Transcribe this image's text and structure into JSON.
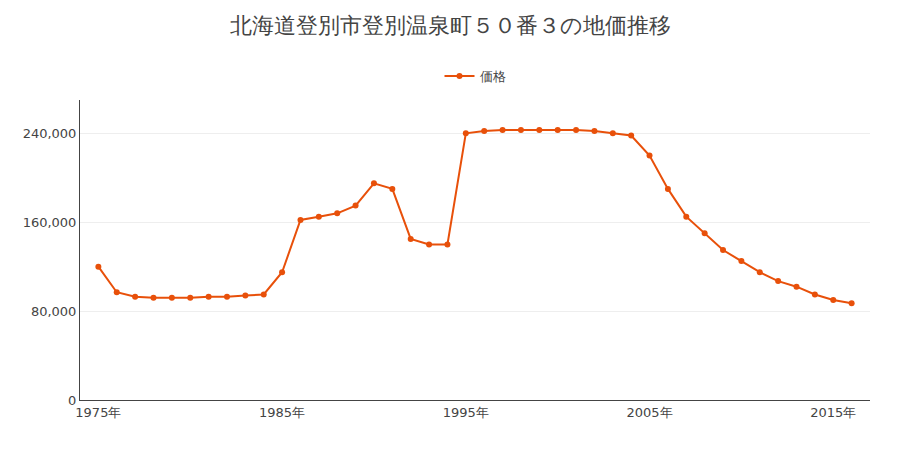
{
  "chart_data": {
    "type": "line",
    "title": "北海道登別市登別温泉町５０番３の地価推移",
    "x": [
      1975,
      1976,
      1977,
      1978,
      1979,
      1980,
      1981,
      1982,
      1983,
      1984,
      1985,
      1986,
      1987,
      1988,
      1989,
      1990,
      1991,
      1992,
      1993,
      1994,
      1995,
      1996,
      1997,
      1998,
      1999,
      2000,
      2001,
      2002,
      2003,
      2004,
      2005,
      2006,
      2007,
      2008,
      2009,
      2010,
      2011,
      2012,
      2013,
      2014,
      2015,
      2016
    ],
    "series": [
      {
        "name": "価格",
        "color": "#E8500A",
        "marker": "circle",
        "values": [
          120000,
          97000,
          93000,
          92000,
          92000,
          92000,
          93000,
          93000,
          94000,
          95000,
          115000,
          162000,
          165000,
          168000,
          175000,
          195000,
          190000,
          145000,
          140000,
          140000,
          240000,
          242000,
          243000,
          243000,
          243000,
          243000,
          243000,
          242000,
          240000,
          238000,
          220000,
          190000,
          165000,
          150000,
          135000,
          125000,
          115000,
          107000,
          102000,
          95000,
          90000,
          87000
        ]
      }
    ],
    "xlim": [
      1974,
      2017
    ],
    "xticks": [
      {
        "value": 1975,
        "label": "1975年"
      },
      {
        "value": 1985,
        "label": "1985年"
      },
      {
        "value": 1995,
        "label": "1995年"
      },
      {
        "value": 2005,
        "label": "2005年"
      },
      {
        "value": 2015,
        "label": "2015年"
      }
    ],
    "ylim": [
      0,
      270000
    ],
    "yticks": [
      0,
      {
        "value": 80000,
        "label": "80,000"
      },
      {
        "value": 160000,
        "label": "160,000"
      },
      {
        "value": 240000,
        "label": "240,000"
      }
    ],
    "grid": "y",
    "legend": "top"
  }
}
